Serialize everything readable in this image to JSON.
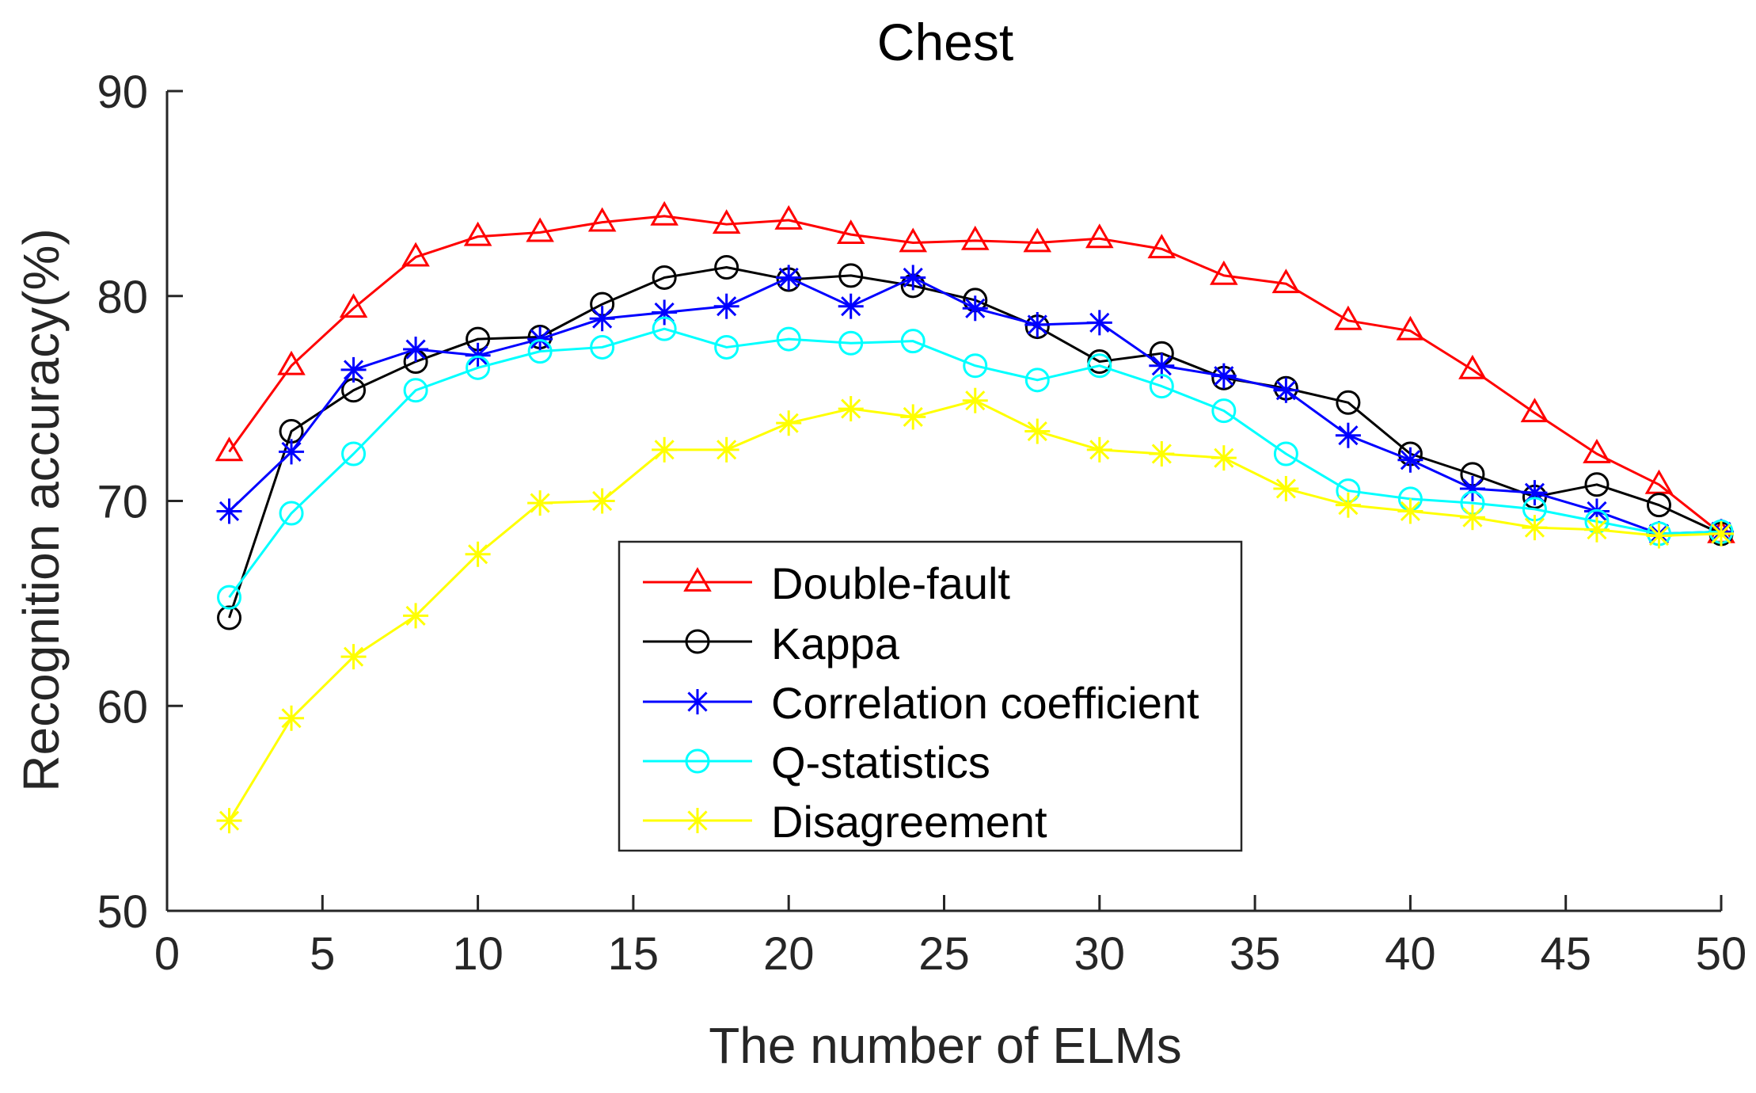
{
  "chart_data": {
    "type": "line",
    "title": "Chest",
    "xlabel": "The number of ELMs",
    "ylabel": "Recognition accuracy(%)",
    "xlim": [
      0,
      50
    ],
    "ylim": [
      50,
      90
    ],
    "xticks": [
      0,
      5,
      10,
      15,
      20,
      25,
      30,
      35,
      40,
      45,
      50
    ],
    "yticks": [
      50,
      60,
      70,
      80,
      90
    ],
    "grid": false,
    "legend_position": "center-bottom",
    "x": [
      2,
      4,
      6,
      8,
      10,
      12,
      14,
      16,
      18,
      20,
      22,
      24,
      26,
      28,
      30,
      32,
      34,
      36,
      38,
      40,
      42,
      44,
      46,
      48,
      50
    ],
    "series": [
      {
        "name": "Double-fault",
        "color": "#ff0000",
        "marker": "triangle",
        "values": [
          72.4,
          76.6,
          79.4,
          81.9,
          82.9,
          83.1,
          83.6,
          83.9,
          83.5,
          83.7,
          83.0,
          82.6,
          82.7,
          82.6,
          82.8,
          82.3,
          81.0,
          80.6,
          78.8,
          78.3,
          76.4,
          74.3,
          72.3,
          70.8,
          68.4
        ]
      },
      {
        "name": "Kappa",
        "color": "#000000",
        "marker": "circle",
        "values": [
          64.3,
          73.4,
          75.4,
          76.8,
          77.9,
          78.0,
          79.6,
          80.9,
          81.4,
          80.8,
          81.0,
          80.5,
          79.8,
          78.5,
          76.8,
          77.2,
          76.0,
          75.5,
          74.8,
          72.3,
          71.3,
          70.2,
          70.8,
          69.8,
          68.4
        ]
      },
      {
        "name": "Correlation coefficient",
        "color": "#0000ff",
        "marker": "asterisk",
        "values": [
          69.5,
          72.4,
          76.4,
          77.4,
          77.1,
          77.9,
          78.9,
          79.2,
          79.5,
          80.9,
          79.5,
          80.9,
          79.4,
          78.6,
          78.7,
          76.6,
          76.1,
          75.4,
          73.2,
          72.0,
          70.6,
          70.4,
          69.5,
          68.4,
          68.5
        ]
      },
      {
        "name": "Q-statistics",
        "color": "#00ffff",
        "marker": "circle",
        "values": [
          65.3,
          69.4,
          72.3,
          75.4,
          76.5,
          77.3,
          77.5,
          78.4,
          77.5,
          77.9,
          77.7,
          77.8,
          76.6,
          75.9,
          76.6,
          75.6,
          74.4,
          72.3,
          70.5,
          70.1,
          69.9,
          69.6,
          69.0,
          68.4,
          68.5
        ]
      },
      {
        "name": "Disagreement",
        "color": "#ffff00",
        "marker": "asterisk",
        "values": [
          54.4,
          59.4,
          62.4,
          64.4,
          67.4,
          69.9,
          70.0,
          72.5,
          72.5,
          73.8,
          74.5,
          74.1,
          74.9,
          73.4,
          72.5,
          72.3,
          72.1,
          70.6,
          69.8,
          69.5,
          69.2,
          68.7,
          68.6,
          68.3,
          68.4
        ]
      }
    ]
  }
}
